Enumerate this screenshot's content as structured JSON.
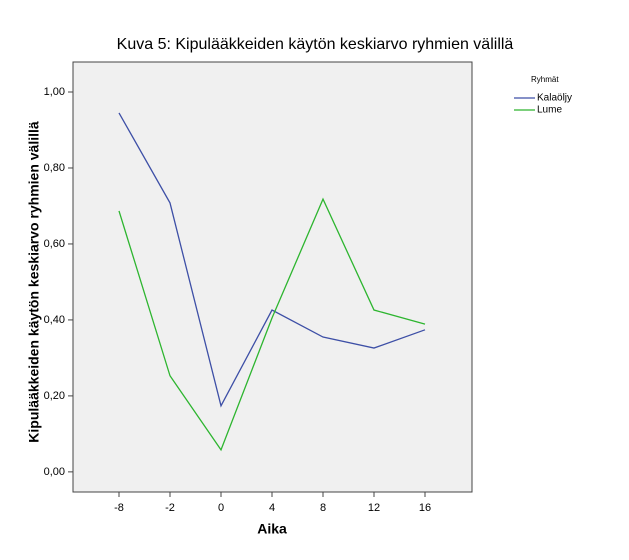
{
  "chart_data": {
    "type": "line",
    "title": "Kuva 5: Kipulääkkeiden käytön keskiarvo ryhmien välillä",
    "x_label": "Aika",
    "y_label": "Kipulääkkeiden käytön keskiarvo ryhmien välillä",
    "legend_title": "Ryhmät",
    "categories": [
      "-8",
      "-2",
      "0",
      "4",
      "8",
      "12",
      "16"
    ],
    "series": [
      {
        "name": "Kalaöljy",
        "color": "#3d4fa6",
        "values": [
          0.945,
          0.708,
          0.174,
          0.426,
          0.355,
          0.326,
          0.374
        ]
      },
      {
        "name": "Lume",
        "color": "#2db52f",
        "values": [
          0.687,
          0.253,
          0.058,
          0.405,
          0.718,
          0.426,
          0.389
        ]
      }
    ],
    "ylim": [
      -0.053,
      1.079
    ],
    "yticks": [
      {
        "value": 0,
        "label": "0,00"
      },
      {
        "value": 0.2,
        "label": "0,20"
      },
      {
        "value": 0.4,
        "label": "0,40"
      },
      {
        "value": 0.6,
        "label": "0,60"
      },
      {
        "value": 0.8,
        "label": "0,80"
      },
      {
        "value": 1.0,
        "label": "1,00"
      }
    ],
    "legend_position": "right"
  }
}
